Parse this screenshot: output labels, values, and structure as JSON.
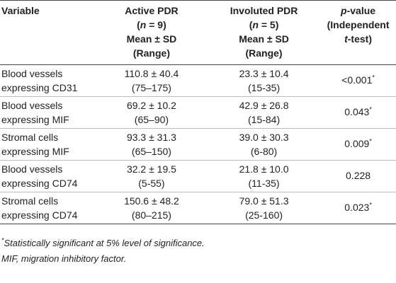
{
  "header": {
    "variable": "Variable",
    "active": {
      "line1": "Active PDR",
      "n_open": "(",
      "n_var": "n",
      "n_rest": " = 9)",
      "line3": "Mean ± SD",
      "line4": "(Range)"
    },
    "involuted": {
      "line1": "Involuted PDR",
      "n_open": "(",
      "n_var": "n",
      "n_rest": " = 5)",
      "line3": "Mean ± SD",
      "line4": "(Range)"
    },
    "pvalue": {
      "p": "p",
      "rest": "-value",
      "line2": "(Independent",
      "line3_var": "t",
      "line3_rest": "-test)"
    }
  },
  "rows": [
    {
      "variable_line1": "Blood vessels",
      "variable_line2": "expressing CD31",
      "active_mean": "110.8 ± 40.4",
      "active_range": "(75–175)",
      "involuted_mean": "23.3 ± 10.4",
      "involuted_range": "(15-35)",
      "p_value": "<0.001",
      "p_mark": "*"
    },
    {
      "variable_line1": "Blood vessels",
      "variable_line2": "expressing MIF",
      "active_mean": "69.2 ± 10.2",
      "active_range": "(65–90)",
      "involuted_mean": "42.9 ± 26.8",
      "involuted_range": "(15-84)",
      "p_value": "0.043",
      "p_mark": "*"
    },
    {
      "variable_line1": "Stromal cells",
      "variable_line2": "expressing MIF",
      "active_mean": "93.3 ± 31.3",
      "active_range": "(65–150)",
      "involuted_mean": "39.0 ± 30.3",
      "involuted_range": "(6-80)",
      "p_value": "0.009",
      "p_mark": "*"
    },
    {
      "variable_line1": "Blood vessels",
      "variable_line2": "expressing CD74",
      "active_mean": "32.2 ± 19.5",
      "active_range": "(5-55)",
      "involuted_mean": "21.8 ± 10.0",
      "involuted_range": "(11-35)",
      "p_value": "0.228",
      "p_mark": ""
    },
    {
      "variable_line1": "Stromal cells",
      "variable_line2": "expressing CD74",
      "active_mean": "150.6 ± 48.2",
      "active_range": "(80–215)",
      "involuted_mean": "79.0 ± 51.3",
      "involuted_range": "(25-160)",
      "p_value": "0.023",
      "p_mark": "*"
    }
  ],
  "footnotes": {
    "mark": "*",
    "significance": "Statistically significant at 5% level of significance.",
    "abbreviation": "MIF, migration inhibitory factor."
  }
}
